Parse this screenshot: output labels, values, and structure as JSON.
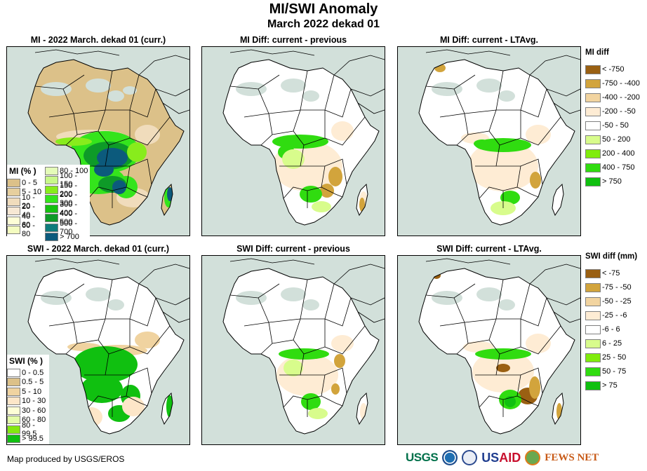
{
  "title": "MI/SWI Anomaly",
  "subtitle": "March 2022 dekad 01",
  "panels": [
    {
      "id": "mi-current",
      "title": "MI - 2022 March. dekad 01 (curr.)"
    },
    {
      "id": "mi-diff-previous",
      "title": "MI Diff: current - previous"
    },
    {
      "id": "mi-diff-ltavg",
      "title": "MI Diff: current - LTAvg."
    },
    {
      "id": "swi-current",
      "title": "SWI - 2022 March. dekad 01 (curr.)"
    },
    {
      "id": "swi-diff-previous",
      "title": "SWI Diff: current - previous"
    },
    {
      "id": "swi-diff-ltavg",
      "title": "SWI Diff: current - LTAvg."
    }
  ],
  "legends": {
    "mi_percent": {
      "title": "MI (% )",
      "col1": [
        {
          "label": "0 - 5",
          "color": "#dcc189"
        },
        {
          "label": "5 - 10",
          "color": "#e6cf9e"
        },
        {
          "label": "10 - 20",
          "color": "#f0dcbc"
        },
        {
          "label": "20 - 40",
          "color": "#f7e8d4"
        },
        {
          "label": "40 - 60",
          "color": "#fefed6"
        },
        {
          "label": "60 - 80",
          "color": "#f4fcc0"
        }
      ],
      "col2": [
        {
          "label": "80 - 100",
          "color": "#e4fcb8"
        },
        {
          "label": "100 - 150",
          "color": "#c8f88a"
        },
        {
          "label": "150 - 200",
          "color": "#88ec1c"
        },
        {
          "label": "200 - 300",
          "color": "#34e41c"
        },
        {
          "label": "300 - 400",
          "color": "#14c010"
        },
        {
          "label": "400 - 500",
          "color": "#0e9a28"
        },
        {
          "label": "500 - 700",
          "color": "#0e7c7c"
        },
        {
          "label": "> 700",
          "color": "#0c5a7c"
        }
      ]
    },
    "swi_percent": {
      "title": "SWI (% )",
      "items": [
        {
          "label": "0 - 0.5",
          "color": "#ffffff"
        },
        {
          "label": "0.5 - 5",
          "color": "#dcc189"
        },
        {
          "label": "5 - 10",
          "color": "#f0d3a0"
        },
        {
          "label": "10 - 30",
          "color": "#fde6c8"
        },
        {
          "label": "30 - 60",
          "color": "#fefed6"
        },
        {
          "label": "60 - 80",
          "color": "#e4fca8"
        },
        {
          "label": "80 - 99.5",
          "color": "#84e810"
        },
        {
          "label": "> 99.5",
          "color": "#10c010"
        }
      ]
    },
    "mi_diff": {
      "title": "MI diff",
      "items": [
        {
          "label": "< -750",
          "color": "#9a6012"
        },
        {
          "label": "-750 - -400",
          "color": "#d2a43c"
        },
        {
          "label": "-400 - -200",
          "color": "#f2d4a0"
        },
        {
          "label": "-200 - -50",
          "color": "#feecd4"
        },
        {
          "label": "-50 - 50",
          "color": "#ffffff"
        },
        {
          "label": "50 - 200",
          "color": "#d8fc8c"
        },
        {
          "label": "200 - 400",
          "color": "#80ec0c"
        },
        {
          "label": "400 - 750",
          "color": "#30dc10"
        },
        {
          "label": "> 750",
          "color": "#10c010"
        }
      ]
    },
    "swi_diff": {
      "title": "SWI diff (mm)",
      "items": [
        {
          "label": "< -75",
          "color": "#9a6012"
        },
        {
          "label": "-75 - -50",
          "color": "#d2a43c"
        },
        {
          "label": "-50 - -25",
          "color": "#f2d4a0"
        },
        {
          "label": "-25 - -6",
          "color": "#feecd4"
        },
        {
          "label": "-6 - 6",
          "color": "#ffffff"
        },
        {
          "label": "6 - 25",
          "color": "#d8fc8c"
        },
        {
          "label": "25 - 50",
          "color": "#80ec0c"
        },
        {
          "label": "50 - 75",
          "color": "#30dc10"
        },
        {
          "label": "> 75",
          "color": "#10c010"
        }
      ]
    }
  },
  "map_colors": {
    "ocean": "#d2e0da",
    "desert_nodata": "#d2e0da",
    "border": "#000000"
  },
  "footer": {
    "credit": "Map produced by USGS/EROS",
    "logos": [
      "USGS",
      "NOAA",
      "USAID",
      "FEWS NET"
    ],
    "usgs_label": "USGS",
    "usaid_label_a": "US",
    "usaid_label_b": "AID",
    "fews_label": "FEWS NET"
  }
}
